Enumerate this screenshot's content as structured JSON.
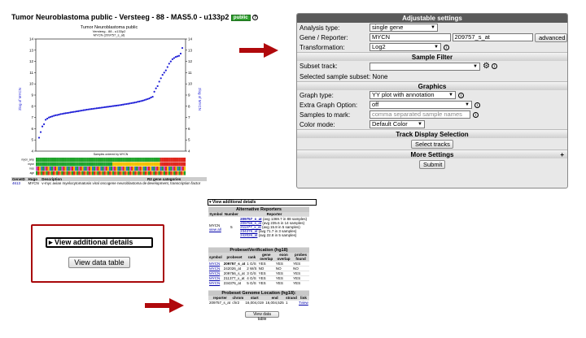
{
  "title": {
    "text": "Tumor Neuroblastoma public - Versteeg - 88 - MAS5.0 - u133p2",
    "badge": "public",
    "info_glyph": "?"
  },
  "plot": {
    "title": "Tumor Neuroblastoma public",
    "subtitle1": "Versteeg - 88 - u133p2",
    "subtitle2": "MYCN (209757_s_at)",
    "ylabel_left": "2log of MYCN",
    "ylabel_right": "2log of MYCN",
    "xlabel": "Samples ordered by MYCN",
    "track_labels": [
      "mycn_amp",
      "mycn",
      "inss",
      "age"
    ],
    "y_ticks": [
      "4",
      "5",
      "6",
      "7",
      "8",
      "9",
      "10",
      "11",
      "12",
      "13",
      "14"
    ],
    "chart_data": {
      "type": "scatter",
      "ylim": [
        4,
        14
      ],
      "series": [
        {
          "values": [
            5.2,
            5.7,
            6.2,
            6.4,
            6.8,
            6.9,
            7.0,
            7.05,
            7.1,
            7.15,
            7.2,
            7.22,
            7.25,
            7.3,
            7.32,
            7.35,
            7.38,
            7.4,
            7.42,
            7.45,
            7.48,
            7.5,
            7.52,
            7.55,
            7.57,
            7.6,
            7.62,
            7.65,
            7.67,
            7.7,
            7.72,
            7.74,
            7.76,
            7.78,
            7.8,
            7.82,
            7.84,
            7.86,
            7.88,
            7.9,
            7.92,
            7.94,
            7.96,
            7.98,
            8.0,
            8.02,
            8.04,
            8.06,
            8.08,
            8.1,
            8.12,
            8.15,
            8.18,
            8.2,
            8.22,
            8.25,
            8.28,
            8.3,
            8.33,
            8.36,
            8.4,
            8.43,
            8.47,
            8.5,
            8.55,
            8.6,
            8.65,
            8.7,
            8.78,
            8.85,
            9.3,
            9.6,
            9.8,
            10.2,
            10.5,
            10.8,
            11.0,
            11.2,
            11.5,
            11.8,
            12.0,
            12.2,
            12.3,
            12.4,
            12.45,
            12.5,
            12.7,
            13.2
          ]
        }
      ]
    }
  },
  "gene_table": {
    "headers": [
      "GeneID",
      "Hugo",
      "Description",
      "R2 gene categories"
    ],
    "row": [
      "4613",
      "MYCN",
      "v-myc avian myelocytomatosis viral oncogene neuroblastoma derived homolog",
      "development, transcription factor"
    ]
  },
  "settings": {
    "header": "Adjustable settings",
    "analysis_type_label": "Analysis type:",
    "analysis_type_value": "single gene",
    "gene_label": "Gene / Reporter:",
    "gene_value": "MYCN",
    "reporter_value": "209757_s_at",
    "advanced_label": "advanced",
    "transformation_label": "Transformation:",
    "transformation_value": "Log2",
    "sample_filter_header": "Sample Filter",
    "subset_track_label": "Subset track:",
    "subset_track_value": "",
    "selected_subset_label": "Selected sample subset: None",
    "graphics_header": "Graphics",
    "graph_type_label": "Graph type:",
    "graph_type_value": "YY plot with annotation",
    "extra_option_label": "Extra Graph Option:",
    "extra_option_value": "off",
    "samples_mark_label": "Samples to mark:",
    "samples_mark_placeholder": "comma separated sample names",
    "color_mode_label": "Color mode:",
    "color_mode_value": "Default Color",
    "track_display_header": "Track Display Selection",
    "select_tracks_label": "Select tracks",
    "more_settings_header": "More Settings",
    "more_settings_plus": "+",
    "submit_label": "Submit"
  },
  "zoom": {
    "toggle_label": "▸ View additional details",
    "data_table_label": "View data table"
  },
  "details": {
    "toggle_label": "▾ View additional details",
    "alt_reporters": {
      "caption": "Alternative Reporters",
      "headers": [
        "Symbol",
        "Number",
        "Reporter"
      ],
      "symbol": "MYCN",
      "view_all": "view all",
      "number": "5",
      "reporters": [
        {
          "id": "209757_s_at",
          "info": "(avg 1369.7 in 88 samples)"
        },
        {
          "id": "209756_s_at",
          "info": "(avg 235.6 in 14 samples)"
        },
        {
          "id": "211377_x_at",
          "info": "(avg 15.8 in 5 samples)"
        },
        {
          "id": "234376_at",
          "info": "(avg 71.7 in 3 samples)"
        },
        {
          "id": "242026_at",
          "info": "(avg 22.8 in 5 samples)"
        }
      ]
    },
    "probeset_verification": {
      "caption": "ProbesetVerification (hg18)",
      "headers": [
        "symbol",
        "probeset",
        "rank",
        "gene overlap",
        "exon overlap",
        "probes found"
      ],
      "rows": [
        [
          "MYCN",
          "209757_s_at",
          "1 G/S",
          "YES",
          "YES",
          "YES"
        ],
        [
          "MYCN",
          "242026_at",
          "2 W/S",
          "NO",
          "NO",
          "NO"
        ],
        [
          "MYCN",
          "209756_s_at",
          "3 G/S",
          "YES",
          "YES",
          "YES"
        ],
        [
          "MYCN",
          "211377_x_at",
          "4 G/S",
          "YES",
          "YES",
          "YES"
        ],
        [
          "MYCN",
          "234376_at",
          "5 G/S",
          "YES",
          "YES",
          "YES"
        ]
      ]
    },
    "genome_location": {
      "caption": "Probeset Genome Location (hg18):",
      "headers": [
        "reporter",
        "chrom",
        "start",
        "end",
        "strand",
        "link"
      ],
      "row": [
        "209757_s_at",
        "chr2",
        "16,004,019",
        "16,004,525",
        "1",
        "Tview"
      ]
    },
    "data_table_label": "View data table"
  },
  "colors": {
    "arrow": "#b0090c",
    "point": "#1a1ad6",
    "badge": "#2e9e2e",
    "settings_header": "#5a5a5a"
  }
}
